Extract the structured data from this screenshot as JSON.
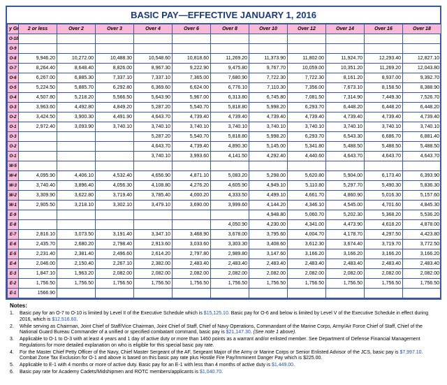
{
  "title": "BASIC PAY—EFFECTIVE JANUARY 1, 2016",
  "columns": [
    "y Gr",
    "2 or less",
    "Over 2",
    "Over 3",
    "Over 4",
    "Over 6",
    "Over 8",
    "Over 10",
    "Over 12",
    "Over 14",
    "Over 16",
    "Over 18"
  ],
  "rows": [
    {
      "grade": "O-10",
      "cells": [
        "",
        "",
        "",
        "",
        "",
        "",
        "",
        "",
        "",
        "",
        ""
      ]
    },
    {
      "grade": "O-9",
      "cells": [
        "",
        "",
        "",
        "",
        "",
        "",
        "",
        "",
        "",
        "",
        ""
      ]
    },
    {
      "grade": "O-8",
      "cells": [
        "9,946.20",
        "10,272.00",
        "10,488.30",
        "10,548.60",
        "10,818.60",
        "11,269.20",
        "11,373.90",
        "11,802.00",
        "11,924.70",
        "12,293.40",
        "12,827.10"
      ]
    },
    {
      "grade": "O-7",
      "cells": [
        "8,264.40",
        "8,648.40",
        "8,826.00",
        "8,967.30",
        "9,222.90",
        "9,475.80",
        "9,767.70",
        "10,059.00",
        "10,351.20",
        "11,269.20",
        "12,043.80"
      ]
    },
    {
      "grade": "O-6",
      "cells": [
        "6,267.00",
        "6,885.30",
        "7,337.10",
        "7,337.10",
        "7,365.00",
        "7,680.90",
        "7,722.30",
        "7,722.30",
        "8,161.20",
        "8,937.00",
        "9,392.70"
      ]
    },
    {
      "grade": "O-5",
      "cells": [
        "5,224.50",
        "5,885.70",
        "6,292.80",
        "6,369.60",
        "6,624.00",
        "6,776.10",
        "7,110.30",
        "7,356.00",
        "7,673.10",
        "8,158.50",
        "8,388.90"
      ]
    },
    {
      "grade": "O-4",
      "cells": [
        "4,507.80",
        "5,218.20",
        "5,566.50",
        "5,643.90",
        "5,967.00",
        "6,313.80",
        "6,745.80",
        "7,081.50",
        "7,314.90",
        "7,449.30",
        "7,526.70"
      ]
    },
    {
      "grade": "O-3",
      "cells": [
        "3,963.60",
        "4,492.80",
        "4,849.20",
        "5,287.20",
        "5,540.70",
        "5,818.80",
        "5,998.20",
        "6,293.70",
        "6,448.20",
        "6,448.20",
        "6,448.20"
      ]
    },
    {
      "grade": "O-2",
      "cells": [
        "3,424.50",
        "3,900.30",
        "4,491.90",
        "4,643.70",
        "4,739.40",
        "4,739.40",
        "4,739.40",
        "4,739.40",
        "4,739.40",
        "4,739.40",
        "4,739.40"
      ]
    },
    {
      "grade": "O-1",
      "cells": [
        "2,972.40",
        "3,093.90",
        "3,740.10",
        "3,740.10",
        "3,740.10",
        "3,740.10",
        "3,740.10",
        "3,740.10",
        "3,740.10",
        "3,740.10",
        "3,740.10"
      ]
    },
    {
      "grade": "O-3",
      "cells": [
        "",
        "",
        "",
        "5,287.20",
        "5,540.70",
        "5,818.80",
        "5,998.20",
        "6,293.70",
        "6,543.30",
        "6,686.70",
        "6,881.40"
      ]
    },
    {
      "grade": "O-2",
      "cells": [
        "",
        "",
        "",
        "4,643.70",
        "4,739.40",
        "4,890.30",
        "5,145.00",
        "5,341.80",
        "5,488.50",
        "5,488.50",
        "5,488.50"
      ]
    },
    {
      "grade": "O-1",
      "cells": [
        "",
        "",
        "",
        "3,740.10",
        "3,993.60",
        "4,141.50",
        "4,292.40",
        "4,440.60",
        "4,643.70",
        "4,643.70",
        "4,643.70"
      ]
    },
    {
      "grade": "W-5",
      "cells": [
        "",
        "",
        "",
        "",
        "",
        "",
        "",
        "",
        "",
        "",
        ""
      ]
    },
    {
      "grade": "W-4",
      "cells": [
        "4,095.90",
        "4,406.10",
        "4,532.40",
        "4,656.90",
        "4,871.10",
        "5,083.20",
        "5,298.00",
        "5,620.80",
        "5,904.00",
        "6,173.40",
        "6,393.90"
      ]
    },
    {
      "grade": "W-3",
      "cells": [
        "3,740.40",
        "3,896.40",
        "4,056.30",
        "4,108.80",
        "4,276.20",
        "4,605.90",
        "4,949.10",
        "5,110.80",
        "5,297.70",
        "5,490.30",
        "5,836.30"
      ]
    },
    {
      "grade": "W-2",
      "cells": [
        "3,309.90",
        "3,622.80",
        "3,719.40",
        "3,785.40",
        "4,000.20",
        "4,333.50",
        "4,499.10",
        "4,661.70",
        "4,860.90",
        "5,016.30",
        "5,157.60"
      ]
    },
    {
      "grade": "W-1",
      "cells": [
        "2,905.50",
        "3,218.10",
        "3,302.10",
        "3,479.10",
        "3,690.00",
        "3,999.60",
        "4,144.20",
        "4,346.10",
        "4,545.00",
        "4,701.60",
        "4,845.30"
      ]
    },
    {
      "grade": "E-9",
      "cells": [
        "",
        "",
        "",
        "",
        "",
        "",
        "4,948.80",
        "5,060.70",
        "5,202.30",
        "5,368.20",
        "5,536.20"
      ]
    },
    {
      "grade": "E-8",
      "cells": [
        "",
        "",
        "",
        "",
        "",
        "4,050.90",
        "4,230.00",
        "4,341.00",
        "4,473.90",
        "4,618.20",
        "4,878.00"
      ]
    },
    {
      "grade": "E-7",
      "cells": [
        "2,816.10",
        "3,073.50",
        "3,191.40",
        "3,347.10",
        "3,468.90",
        "3,678.00",
        "3,795.60",
        "4,004.70",
        "4,178.70",
        "4,297.50",
        "4,423.80"
      ]
    },
    {
      "grade": "E-6",
      "cells": [
        "2,435.70",
        "2,680.20",
        "2,798.40",
        "2,913.60",
        "3,033.60",
        "3,303.30",
        "3,408.60",
        "3,612.30",
        "3,674.40",
        "3,719.70",
        "3,772.50"
      ]
    },
    {
      "grade": "E-5",
      "cells": [
        "2,231.40",
        "2,381.40",
        "2,496.60",
        "2,614.20",
        "2,797.80",
        "2,989.80",
        "3,147.60",
        "3,166.20",
        "3,166.20",
        "3,166.20",
        "3,166.20"
      ]
    },
    {
      "grade": "E-4",
      "cells": [
        "2,046.00",
        "2,150.40",
        "2,267.10",
        "2,382.00",
        "2,483.40",
        "2,483.40",
        "2,483.40",
        "2,483.40",
        "2,483.40",
        "2,483.40",
        "2,483.40"
      ]
    },
    {
      "grade": "E-3",
      "cells": [
        "1,847.10",
        "1,963.20",
        "2,082.00",
        "2,082.00",
        "2,082.00",
        "2,082.00",
        "2,082.00",
        "2,082.00",
        "2,082.00",
        "2,082.00",
        "2,082.00"
      ]
    },
    {
      "grade": "E-2",
      "cells": [
        "1,756.50",
        "1,756.50",
        "1,756.50",
        "1,756.50",
        "1,756.50",
        "1,756.50",
        "1,756.50",
        "1,756.50",
        "1,756.50",
        "1,756.50",
        "1,756.50"
      ]
    },
    {
      "grade": "E-1",
      "cells": [
        "1566.90",
        "",
        "",
        "",
        "",
        "",
        "",
        "",
        "",
        "",
        ""
      ]
    }
  ],
  "notes_title": "Notes:",
  "notes": [
    {
      "num": "1.",
      "html": "Basic pay for an O-7 to O-10 is limited by Level II of the Executive Schedule which is <span class='blue'>$15,125.10</span>. Basic pay for O-6 and below is limited by Level V of the Executive Schedule in effect during 2016, which is <span class='blue'>$12,516.60</span>."
    },
    {
      "num": "2.",
      "html": "While serving as Chairman, Joint Chief of Staff/Vice Chairman, Joint Chief of Staff, Chief of Navy Operations, Commandant of the Marine Corps, Army/Air Force Chief of Staff, Chief of the National Guard Bureau Commander of a unified or specified combatant command, basic pay is <span class='blue'>$21,147.30</span>. <span class='italic'>(See note 1 above).</span>"
    },
    {
      "num": "3.",
      "html": "Applicable to O-1 to O-3 with at least 4 years and 1 day of active duty or more than 1460 points as a warrant and/or enlisted member. See Department of Defense Financial Management Regulations for more detailed explanation on who is eligible for this special basic pay rate."
    },
    {
      "num": "4.",
      "html": "For the Master Chief Petty Officer of the Navy, Chief Master Sergeant of the AF, Sergeant Major of the Army or Marine Corps or Senior Enlisted Advisor of the JCS, basic pay is <span class='blue'>$7,997.10</span>. Combat Zone Tax Exclusion for O-1 and above is based on this basic pay rate plus Hostile Fire Pay/Imminent Danger Pay which is $225.00."
    },
    {
      "num": "5.",
      "html": "Applicable to E-1 with 4 months or more of active duty. Basic pay for an E-1 with less than 4 months of active duty is <span class='blue'>$1,449.00</span>."
    },
    {
      "num": "6.",
      "html": "Basic pay rate for Academy Cadets/Midshipmen and ROTC members/applicants is <span class='blue'>$1,040.70</span>."
    }
  ],
  "colors": {
    "border": "#3a5a9a",
    "header_bg": "#f8b8d8",
    "title_color": "#1a3a7a",
    "link_blue": "#1a4aca",
    "background": "#ffffff"
  }
}
